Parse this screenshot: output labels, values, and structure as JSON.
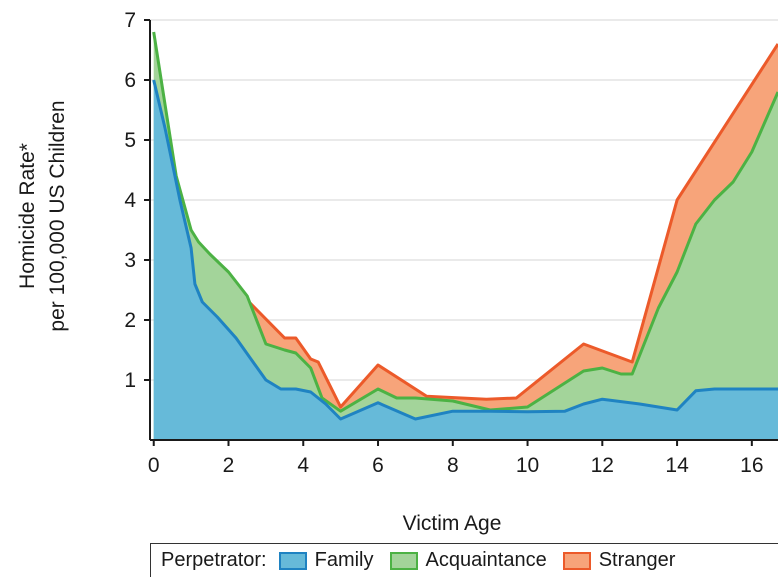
{
  "chart_data": {
    "type": "area",
    "stacked": false,
    "xlabel": "Victim Age",
    "ylabel_line1": "Homicide Rate*",
    "ylabel_line2": "per 100,000 US Children",
    "xlim": [
      -0.1,
      16.7
    ],
    "ylim": [
      0,
      7
    ],
    "xticks": [
      0,
      2,
      4,
      6,
      8,
      10,
      12,
      14,
      16
    ],
    "yticks": [
      1,
      2,
      3,
      4,
      5,
      6,
      7
    ],
    "grid": true,
    "legend_placement": "bottom",
    "legend_title": "Perpetrator:",
    "series": [
      {
        "name": "Stranger",
        "fill": "#f7a47a",
        "stroke": "#ec5a2a",
        "x": [
          2.55,
          3.5,
          3.8,
          4.2,
          4.4,
          5,
          6,
          7.3,
          8.9,
          9.7,
          11.5,
          12.8,
          14,
          16.7
        ],
        "y": [
          2.3,
          1.7,
          1.7,
          1.35,
          1.3,
          0.55,
          1.25,
          0.73,
          0.68,
          0.7,
          1.6,
          1.3,
          4.0,
          6.6
        ]
      },
      {
        "name": "Acquaintance",
        "fill": "#a3d49a",
        "stroke": "#4cb244",
        "x": [
          0,
          0.2,
          0.6,
          1.0,
          1.2,
          1.5,
          2.0,
          2.5,
          3.0,
          3.5,
          3.8,
          4.2,
          4.5,
          5.0,
          6.0,
          6.5,
          7.0,
          8.0,
          9.0,
          10.0,
          11.0,
          11.5,
          12.0,
          12.5,
          12.8,
          13.5,
          14.0,
          14.5,
          15.0,
          15.5,
          16.0,
          16.7
        ],
        "y": [
          6.8,
          6.0,
          4.4,
          3.5,
          3.3,
          3.1,
          2.8,
          2.4,
          1.6,
          1.5,
          1.45,
          1.2,
          0.7,
          0.48,
          0.85,
          0.7,
          0.7,
          0.65,
          0.5,
          0.55,
          0.95,
          1.15,
          1.2,
          1.1,
          1.1,
          2.2,
          2.8,
          3.6,
          4.0,
          4.3,
          4.8,
          5.8
        ]
      },
      {
        "name": "Family",
        "fill": "#66bad9",
        "stroke": "#1f83c2",
        "x": [
          0,
          0.3,
          0.7,
          1.0,
          1.1,
          1.3,
          1.7,
          2.2,
          2.6,
          3.0,
          3.4,
          3.8,
          4.2,
          4.6,
          5.0,
          6.0,
          7.0,
          8.0,
          9.0,
          10.0,
          11.0,
          11.5,
          12.0,
          13.0,
          14.0,
          14.5,
          15.0,
          16.0,
          16.7
        ],
        "y": [
          6.0,
          5.2,
          4.0,
          3.2,
          2.6,
          2.3,
          2.05,
          1.7,
          1.35,
          1.0,
          0.85,
          0.85,
          0.8,
          0.6,
          0.35,
          0.62,
          0.35,
          0.48,
          0.48,
          0.47,
          0.48,
          0.6,
          0.68,
          0.6,
          0.5,
          0.82,
          0.85,
          0.85,
          0.85
        ]
      }
    ]
  }
}
